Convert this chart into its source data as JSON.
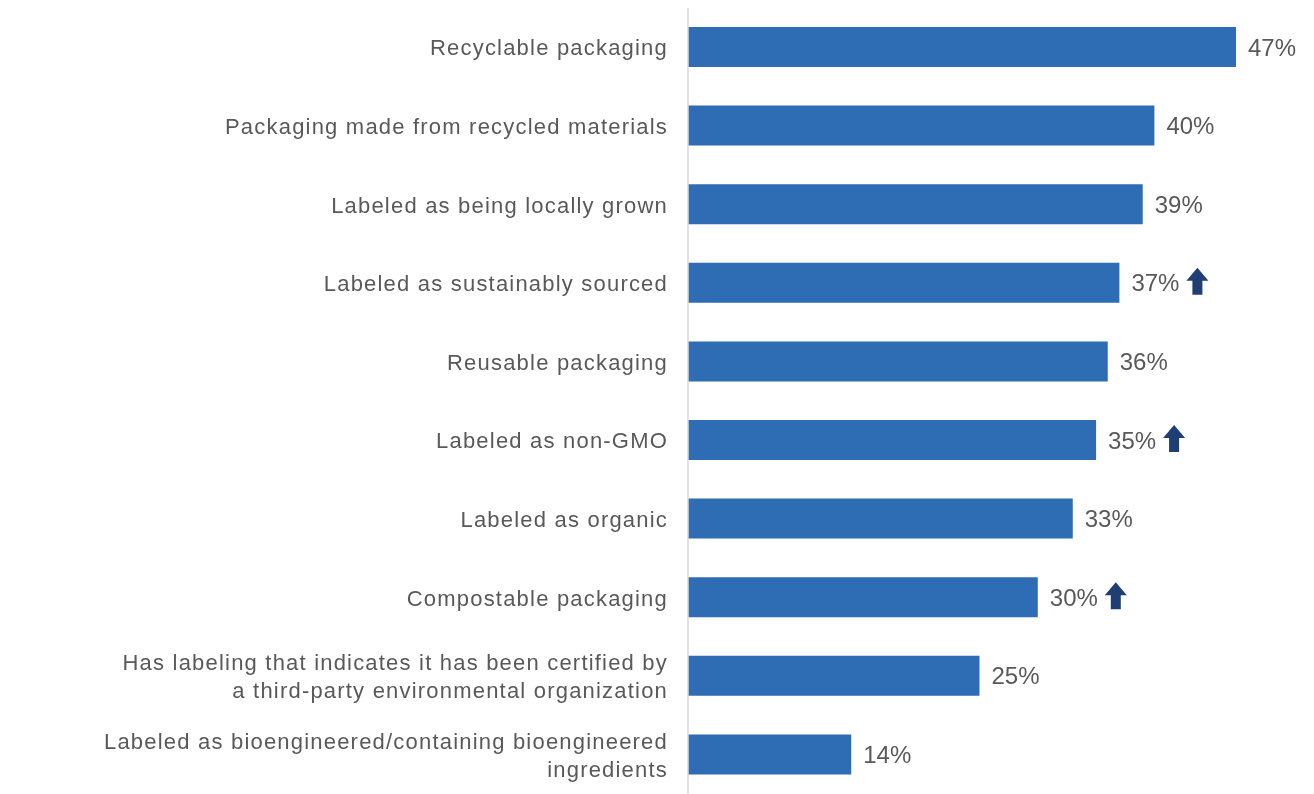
{
  "chart_data": {
    "type": "bar",
    "orientation": "horizontal",
    "categories": [
      "Recyclable packaging",
      "Packaging made from recycled materials",
      "Labeled as being locally grown",
      "Labeled as sustainably sourced",
      "Reusable packaging",
      "Labeled as non-GMO",
      "Labeled as organic",
      "Compostable packaging",
      "Has labeling that indicates it has been certified by a third-party environmental organization",
      "Labeled as bioengineered/containing bioengineered ingredients"
    ],
    "values": [
      47,
      40,
      39,
      37,
      36,
      35,
      33,
      30,
      25,
      14
    ],
    "value_labels": [
      "47%",
      "40%",
      "39%",
      "37%",
      "36%",
      "35%",
      "33%",
      "30%",
      "25%",
      "14%"
    ],
    "color": "#2e6db4",
    "grid": false,
    "legend": false
  }
}
